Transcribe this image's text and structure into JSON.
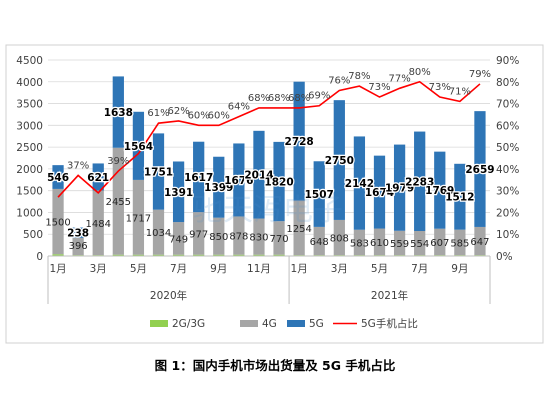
{
  "caption": "图 1：国内手机市场出货量及 5G 手机占比",
  "chart_data": {
    "type": "bar",
    "stacked": true,
    "categories": [
      "1月",
      "2月",
      "3月",
      "4月",
      "5月",
      "6月",
      "7月",
      "8月",
      "9月",
      "10月",
      "11月",
      "12月",
      "1月",
      "2月",
      "3月",
      "4月",
      "5月",
      "6月",
      "7月",
      "8月",
      "9月",
      "10月"
    ],
    "category_labels": [
      "1月",
      "",
      "3月",
      "",
      "5月",
      "",
      "7月",
      "",
      "9月",
      "",
      "11月",
      "",
      "1月",
      "",
      "3月",
      "",
      "5月",
      "",
      "7月",
      "",
      "9月",
      ""
    ],
    "year_groups": [
      {
        "label": "2020年",
        "start": 0,
        "end": 11
      },
      {
        "label": "2021年",
        "start": 12,
        "end": 21
      }
    ],
    "series": [
      {
        "name": "2G/3G",
        "color": "#92d050",
        "values": [
          40,
          20,
          20,
          30,
          30,
          30,
          30,
          30,
          30,
          30,
          30,
          30,
          20,
          20,
          20,
          20,
          20,
          20,
          20,
          20,
          20,
          20
        ]
      },
      {
        "name": "4G",
        "color": "#a6a6a6",
        "values": [
          1500,
          396,
          1484,
          2455,
          1717,
          1034,
          749,
          977,
          850,
          878,
          830,
          770,
          1254,
          648,
          808,
          583,
          610,
          559,
          554,
          607,
          585,
          647
        ]
      },
      {
        "name": "5G",
        "color": "#2e75b6",
        "values": [
          546,
          238,
          621,
          1638,
          1564,
          1751,
          1391,
          1617,
          1399,
          1676,
          2014,
          1820,
          2728,
          1507,
          2750,
          2142,
          1674,
          1979,
          2283,
          1769,
          1512,
          2659
        ]
      }
    ],
    "line_series": {
      "name": "5G手机占比",
      "color": "#ff0000",
      "values": [
        27,
        37,
        29,
        39,
        47,
        61,
        62,
        60,
        60,
        64,
        68,
        68,
        68,
        69,
        76,
        78,
        73,
        77,
        80,
        73,
        71,
        79
      ]
    },
    "pct_labels": [
      "",
      "37%",
      "",
      "39%",
      "",
      "61%",
      "62%",
      "60%",
      "60%",
      "64%",
      "68%",
      "68%",
      "68%",
      "69%",
      "76%",
      "78%",
      "73%",
      "77%",
      "80%",
      "73%",
      "71%",
      "79%"
    ],
    "ylim": [
      0,
      4500
    ],
    "y_ticks": [
      0,
      500,
      1000,
      1500,
      2000,
      2500,
      3000,
      3500,
      4000,
      4500
    ],
    "y2lim": [
      0,
      90
    ],
    "y2_ticks": [
      "0%",
      "10%",
      "20%",
      "30%",
      "40%",
      "50%",
      "60%",
      "70%",
      "80%",
      "90%"
    ],
    "grid": true,
    "legend_position": "bottom",
    "watermark": "驰天泻电子"
  }
}
